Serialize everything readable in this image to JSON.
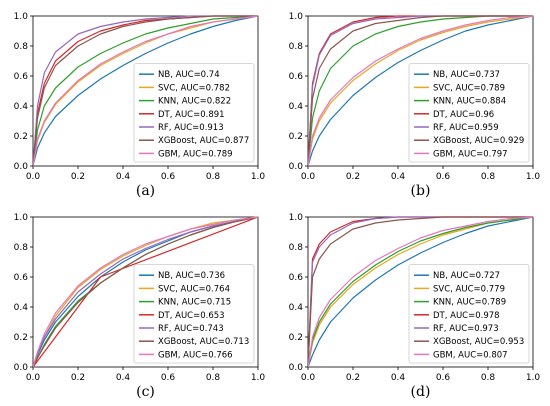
{
  "colors": {
    "NB": "#1f77b4",
    "SVC": "#e8a81c",
    "KNN": "#2ca02c",
    "DT": "#d62728",
    "RF": "#9467bd",
    "XGBoost": "#8c564b",
    "GBM": "#e377c2"
  },
  "chart_data": [
    {
      "type": "line",
      "caption": "(a)",
      "xlim": [
        0,
        1
      ],
      "ylim": [
        0,
        1
      ],
      "xticks": [
        "0.0",
        "0.2",
        "0.4",
        "0.6",
        "0.8",
        "1.0"
      ],
      "yticks": [
        "0.0",
        "0.2",
        "0.4",
        "0.6",
        "0.8",
        "1.0"
      ],
      "legend_position": "lower-right",
      "series": [
        {
          "name": "NB, AUC=0.74",
          "key": "NB",
          "x": [
            0,
            0.02,
            0.05,
            0.1,
            0.2,
            0.3,
            0.4,
            0.5,
            0.6,
            0.7,
            0.8,
            0.9,
            1.0
          ],
          "y": [
            0,
            0.12,
            0.22,
            0.33,
            0.47,
            0.58,
            0.67,
            0.75,
            0.82,
            0.88,
            0.93,
            0.97,
            1.0
          ]
        },
        {
          "name": "SVC, AUC=0.782",
          "key": "SVC",
          "x": [
            0,
            0.02,
            0.05,
            0.1,
            0.2,
            0.3,
            0.4,
            0.5,
            0.6,
            0.7,
            0.8,
            0.9,
            1.0
          ],
          "y": [
            0,
            0.17,
            0.29,
            0.41,
            0.56,
            0.67,
            0.75,
            0.82,
            0.88,
            0.92,
            0.96,
            0.98,
            1.0
          ]
        },
        {
          "name": "KNN, AUC=0.822",
          "key": "KNN",
          "x": [
            0,
            0.02,
            0.05,
            0.1,
            0.2,
            0.3,
            0.4,
            0.5,
            0.6,
            0.7,
            0.8,
            0.9,
            1.0
          ],
          "y": [
            0,
            0.24,
            0.4,
            0.52,
            0.66,
            0.75,
            0.82,
            0.88,
            0.92,
            0.95,
            0.98,
            0.99,
            1.0
          ]
        },
        {
          "name": "DT, AUC=0.891",
          "key": "DT",
          "x": [
            0,
            0.02,
            0.05,
            0.1,
            0.2,
            0.3,
            0.4,
            0.5,
            0.6,
            0.7,
            0.8,
            0.9,
            1.0
          ],
          "y": [
            0,
            0.35,
            0.55,
            0.7,
            0.83,
            0.9,
            0.94,
            0.97,
            0.98,
            0.99,
            1.0,
            1.0,
            1.0
          ]
        },
        {
          "name": "RF, AUC=0.913",
          "key": "RF",
          "x": [
            0,
            0.02,
            0.05,
            0.1,
            0.2,
            0.3,
            0.4,
            0.5,
            0.6,
            0.7,
            0.8,
            0.9,
            1.0
          ],
          "y": [
            0,
            0.4,
            0.62,
            0.76,
            0.88,
            0.93,
            0.96,
            0.98,
            0.99,
            1.0,
            1.0,
            1.0,
            1.0
          ]
        },
        {
          "name": "XGBoost, AUC=0.877",
          "key": "XGBoost",
          "x": [
            0,
            0.02,
            0.05,
            0.1,
            0.2,
            0.3,
            0.4,
            0.5,
            0.6,
            0.7,
            0.8,
            0.9,
            1.0
          ],
          "y": [
            0,
            0.32,
            0.52,
            0.67,
            0.8,
            0.88,
            0.93,
            0.96,
            0.98,
            0.99,
            1.0,
            1.0,
            1.0
          ]
        },
        {
          "name": "GBM, AUC=0.789",
          "key": "GBM",
          "x": [
            0,
            0.02,
            0.05,
            0.1,
            0.2,
            0.3,
            0.4,
            0.5,
            0.6,
            0.7,
            0.8,
            0.9,
            1.0
          ],
          "y": [
            0,
            0.18,
            0.3,
            0.42,
            0.57,
            0.68,
            0.76,
            0.83,
            0.88,
            0.93,
            0.96,
            0.98,
            1.0
          ]
        }
      ]
    },
    {
      "type": "line",
      "caption": "(b)",
      "xlim": [
        0,
        1
      ],
      "ylim": [
        0,
        1
      ],
      "xticks": [
        "0.0",
        "0.2",
        "0.4",
        "0.6",
        "0.8",
        "1.0"
      ],
      "yticks": [
        "0.0",
        "0.2",
        "0.4",
        "0.6",
        "0.8",
        "1.0"
      ],
      "legend_position": "lower-right",
      "series": [
        {
          "name": "NB, AUC=0.737",
          "key": "NB",
          "x": [
            0,
            0.02,
            0.05,
            0.1,
            0.2,
            0.3,
            0.4,
            0.5,
            0.6,
            0.7,
            0.8,
            0.9,
            1.0
          ],
          "y": [
            0,
            0.1,
            0.2,
            0.31,
            0.47,
            0.59,
            0.69,
            0.77,
            0.84,
            0.9,
            0.94,
            0.97,
            1.0
          ]
        },
        {
          "name": "SVC, AUC=0.789",
          "key": "SVC",
          "x": [
            0,
            0.02,
            0.05,
            0.1,
            0.2,
            0.3,
            0.4,
            0.5,
            0.6,
            0.7,
            0.8,
            0.9,
            1.0
          ],
          "y": [
            0,
            0.18,
            0.3,
            0.42,
            0.57,
            0.68,
            0.77,
            0.84,
            0.89,
            0.93,
            0.96,
            0.98,
            1.0
          ]
        },
        {
          "name": "KNN, AUC=0.884",
          "key": "KNN",
          "x": [
            0,
            0.02,
            0.05,
            0.1,
            0.2,
            0.3,
            0.4,
            0.5,
            0.6,
            0.7,
            0.8,
            0.9,
            1.0
          ],
          "y": [
            0,
            0.32,
            0.5,
            0.65,
            0.8,
            0.88,
            0.93,
            0.96,
            0.98,
            0.99,
            1.0,
            1.0,
            1.0
          ]
        },
        {
          "name": "DT, AUC=0.96",
          "key": "DT",
          "x": [
            0,
            0.02,
            0.05,
            0.1,
            0.2,
            0.3,
            0.4,
            0.5,
            0.6,
            0.7,
            0.8,
            0.9,
            1.0
          ],
          "y": [
            0,
            0.55,
            0.75,
            0.88,
            0.96,
            0.99,
            1.0,
            1.0,
            1.0,
            1.0,
            1.0,
            1.0,
            1.0
          ]
        },
        {
          "name": "RF, AUC=0.959",
          "key": "RF",
          "x": [
            0,
            0.02,
            0.05,
            0.1,
            0.2,
            0.3,
            0.4,
            0.5,
            0.6,
            0.7,
            0.8,
            0.9,
            1.0
          ],
          "y": [
            0,
            0.53,
            0.74,
            0.87,
            0.95,
            0.98,
            0.99,
            1.0,
            1.0,
            1.0,
            1.0,
            1.0,
            1.0
          ]
        },
        {
          "name": "XGBoost, AUC=0.929",
          "key": "XGBoost",
          "x": [
            0,
            0.02,
            0.05,
            0.1,
            0.2,
            0.3,
            0.4,
            0.5,
            0.6,
            0.7,
            0.8,
            0.9,
            1.0
          ],
          "y": [
            0,
            0.45,
            0.65,
            0.78,
            0.9,
            0.95,
            0.97,
            0.99,
            1.0,
            1.0,
            1.0,
            1.0,
            1.0
          ]
        },
        {
          "name": "GBM, AUC=0.797",
          "key": "GBM",
          "x": [
            0,
            0.02,
            0.05,
            0.1,
            0.2,
            0.3,
            0.4,
            0.5,
            0.6,
            0.7,
            0.8,
            0.9,
            1.0
          ],
          "y": [
            0,
            0.2,
            0.32,
            0.44,
            0.59,
            0.7,
            0.78,
            0.85,
            0.9,
            0.94,
            0.97,
            0.99,
            1.0
          ]
        }
      ]
    },
    {
      "type": "line",
      "caption": "(c)",
      "xlim": [
        0,
        1
      ],
      "ylim": [
        0,
        1
      ],
      "xticks": [
        "0.0",
        "0.2",
        "0.4",
        "0.6",
        "0.8",
        "1.0"
      ],
      "yticks": [
        "0.0",
        "0.2",
        "0.4",
        "0.6",
        "0.8",
        "1.0"
      ],
      "legend_position": "lower-right",
      "series": [
        {
          "name": "NB, AUC=0.736",
          "key": "NB",
          "x": [
            0,
            0.02,
            0.05,
            0.1,
            0.2,
            0.3,
            0.4,
            0.5,
            0.6,
            0.7,
            0.8,
            0.9,
            1.0
          ],
          "y": [
            0,
            0.08,
            0.18,
            0.3,
            0.47,
            0.6,
            0.7,
            0.78,
            0.84,
            0.9,
            0.94,
            0.97,
            1.0
          ]
        },
        {
          "name": "SVC, AUC=0.764",
          "key": "SVC",
          "x": [
            0,
            0.02,
            0.05,
            0.1,
            0.2,
            0.3,
            0.4,
            0.5,
            0.6,
            0.7,
            0.8,
            0.9,
            1.0
          ],
          "y": [
            0,
            0.1,
            0.2,
            0.34,
            0.53,
            0.65,
            0.74,
            0.81,
            0.87,
            0.92,
            0.96,
            0.98,
            1.0
          ]
        },
        {
          "name": "KNN, AUC=0.715",
          "key": "KNN",
          "x": [
            0,
            0.02,
            0.05,
            0.1,
            0.2,
            0.3,
            0.4,
            0.5,
            0.6,
            0.7,
            0.8,
            0.9,
            1.0
          ],
          "y": [
            0,
            0.06,
            0.15,
            0.27,
            0.44,
            0.56,
            0.66,
            0.75,
            0.82,
            0.88,
            0.93,
            0.97,
            1.0
          ]
        },
        {
          "name": "DT, AUC=0.653",
          "key": "DT",
          "x": [
            0,
            0.3,
            1.0
          ],
          "y": [
            0,
            0.6,
            1.0
          ]
        },
        {
          "name": "RF, AUC=0.743",
          "key": "RF",
          "x": [
            0,
            0.02,
            0.05,
            0.1,
            0.2,
            0.3,
            0.4,
            0.5,
            0.6,
            0.7,
            0.8,
            0.9,
            1.0
          ],
          "y": [
            0,
            0.09,
            0.2,
            0.32,
            0.5,
            0.62,
            0.72,
            0.79,
            0.85,
            0.9,
            0.94,
            0.97,
            1.0
          ]
        },
        {
          "name": "XGBoost, AUC=0.713",
          "key": "XGBoost",
          "x": [
            0,
            0.02,
            0.05,
            0.1,
            0.2,
            0.3,
            0.4,
            0.5,
            0.6,
            0.7,
            0.8,
            0.9,
            1.0
          ],
          "y": [
            0,
            0.06,
            0.14,
            0.26,
            0.43,
            0.56,
            0.66,
            0.75,
            0.82,
            0.88,
            0.93,
            0.97,
            1.0
          ]
        },
        {
          "name": "GBM, AUC=0.766",
          "key": "GBM",
          "x": [
            0,
            0.02,
            0.05,
            0.1,
            0.2,
            0.3,
            0.4,
            0.5,
            0.6,
            0.7,
            0.8,
            0.9,
            1.0
          ],
          "y": [
            0,
            0.1,
            0.22,
            0.36,
            0.54,
            0.66,
            0.75,
            0.82,
            0.87,
            0.92,
            0.95,
            0.98,
            1.0
          ]
        }
      ]
    },
    {
      "type": "line",
      "caption": "(d)",
      "xlim": [
        0,
        1
      ],
      "ylim": [
        0,
        1
      ],
      "xticks": [
        "0.0",
        "0.2",
        "0.4",
        "0.6",
        "0.8",
        "1.0"
      ],
      "yticks": [
        "0.0",
        "0.2",
        "0.4",
        "0.6",
        "0.8",
        "1.0"
      ],
      "legend_position": "lower-right",
      "series": [
        {
          "name": "NB, AUC=0.727",
          "key": "NB",
          "x": [
            0,
            0.02,
            0.05,
            0.1,
            0.2,
            0.3,
            0.4,
            0.5,
            0.6,
            0.7,
            0.8,
            0.9,
            1.0
          ],
          "y": [
            0,
            0.08,
            0.18,
            0.3,
            0.46,
            0.58,
            0.68,
            0.76,
            0.83,
            0.89,
            0.94,
            0.97,
            1.0
          ]
        },
        {
          "name": "SVC, AUC=0.779",
          "key": "SVC",
          "x": [
            0,
            0.02,
            0.05,
            0.1,
            0.2,
            0.3,
            0.4,
            0.5,
            0.6,
            0.7,
            0.8,
            0.9,
            1.0
          ],
          "y": [
            0,
            0.16,
            0.28,
            0.4,
            0.55,
            0.66,
            0.75,
            0.82,
            0.88,
            0.92,
            0.96,
            0.98,
            1.0
          ]
        },
        {
          "name": "KNN, AUC=0.789",
          "key": "KNN",
          "x": [
            0,
            0.02,
            0.05,
            0.1,
            0.2,
            0.3,
            0.4,
            0.5,
            0.6,
            0.7,
            0.8,
            0.9,
            1.0
          ],
          "y": [
            0,
            0.18,
            0.3,
            0.42,
            0.57,
            0.68,
            0.77,
            0.84,
            0.89,
            0.93,
            0.96,
            0.98,
            1.0
          ]
        },
        {
          "name": "DT, AUC=0.978",
          "key": "DT",
          "x": [
            0,
            0.02,
            0.05,
            0.1,
            0.2,
            0.3,
            0.4,
            0.5,
            0.6,
            0.7,
            0.8,
            0.9,
            1.0
          ],
          "y": [
            0,
            0.72,
            0.82,
            0.9,
            0.97,
            0.99,
            1.0,
            1.0,
            1.0,
            1.0,
            1.0,
            1.0,
            1.0
          ]
        },
        {
          "name": "RF, AUC=0.973",
          "key": "RF",
          "x": [
            0,
            0.02,
            0.05,
            0.1,
            0.2,
            0.3,
            0.4,
            0.5,
            0.6,
            0.7,
            0.8,
            0.9,
            1.0
          ],
          "y": [
            0,
            0.7,
            0.8,
            0.88,
            0.96,
            0.99,
            1.0,
            1.0,
            1.0,
            1.0,
            1.0,
            1.0,
            1.0
          ]
        },
        {
          "name": "XGBoost, AUC=0.953",
          "key": "XGBoost",
          "x": [
            0,
            0.02,
            0.05,
            0.1,
            0.2,
            0.3,
            0.4,
            0.5,
            0.6,
            0.7,
            0.8,
            0.9,
            1.0
          ],
          "y": [
            0,
            0.6,
            0.72,
            0.82,
            0.92,
            0.96,
            0.98,
            0.99,
            1.0,
            1.0,
            1.0,
            1.0,
            1.0
          ]
        },
        {
          "name": "GBM, AUC=0.807",
          "key": "GBM",
          "x": [
            0,
            0.02,
            0.05,
            0.1,
            0.2,
            0.3,
            0.4,
            0.5,
            0.6,
            0.7,
            0.8,
            0.9,
            1.0
          ],
          "y": [
            0,
            0.2,
            0.33,
            0.45,
            0.6,
            0.71,
            0.79,
            0.86,
            0.91,
            0.94,
            0.97,
            0.99,
            1.0
          ]
        }
      ]
    }
  ]
}
